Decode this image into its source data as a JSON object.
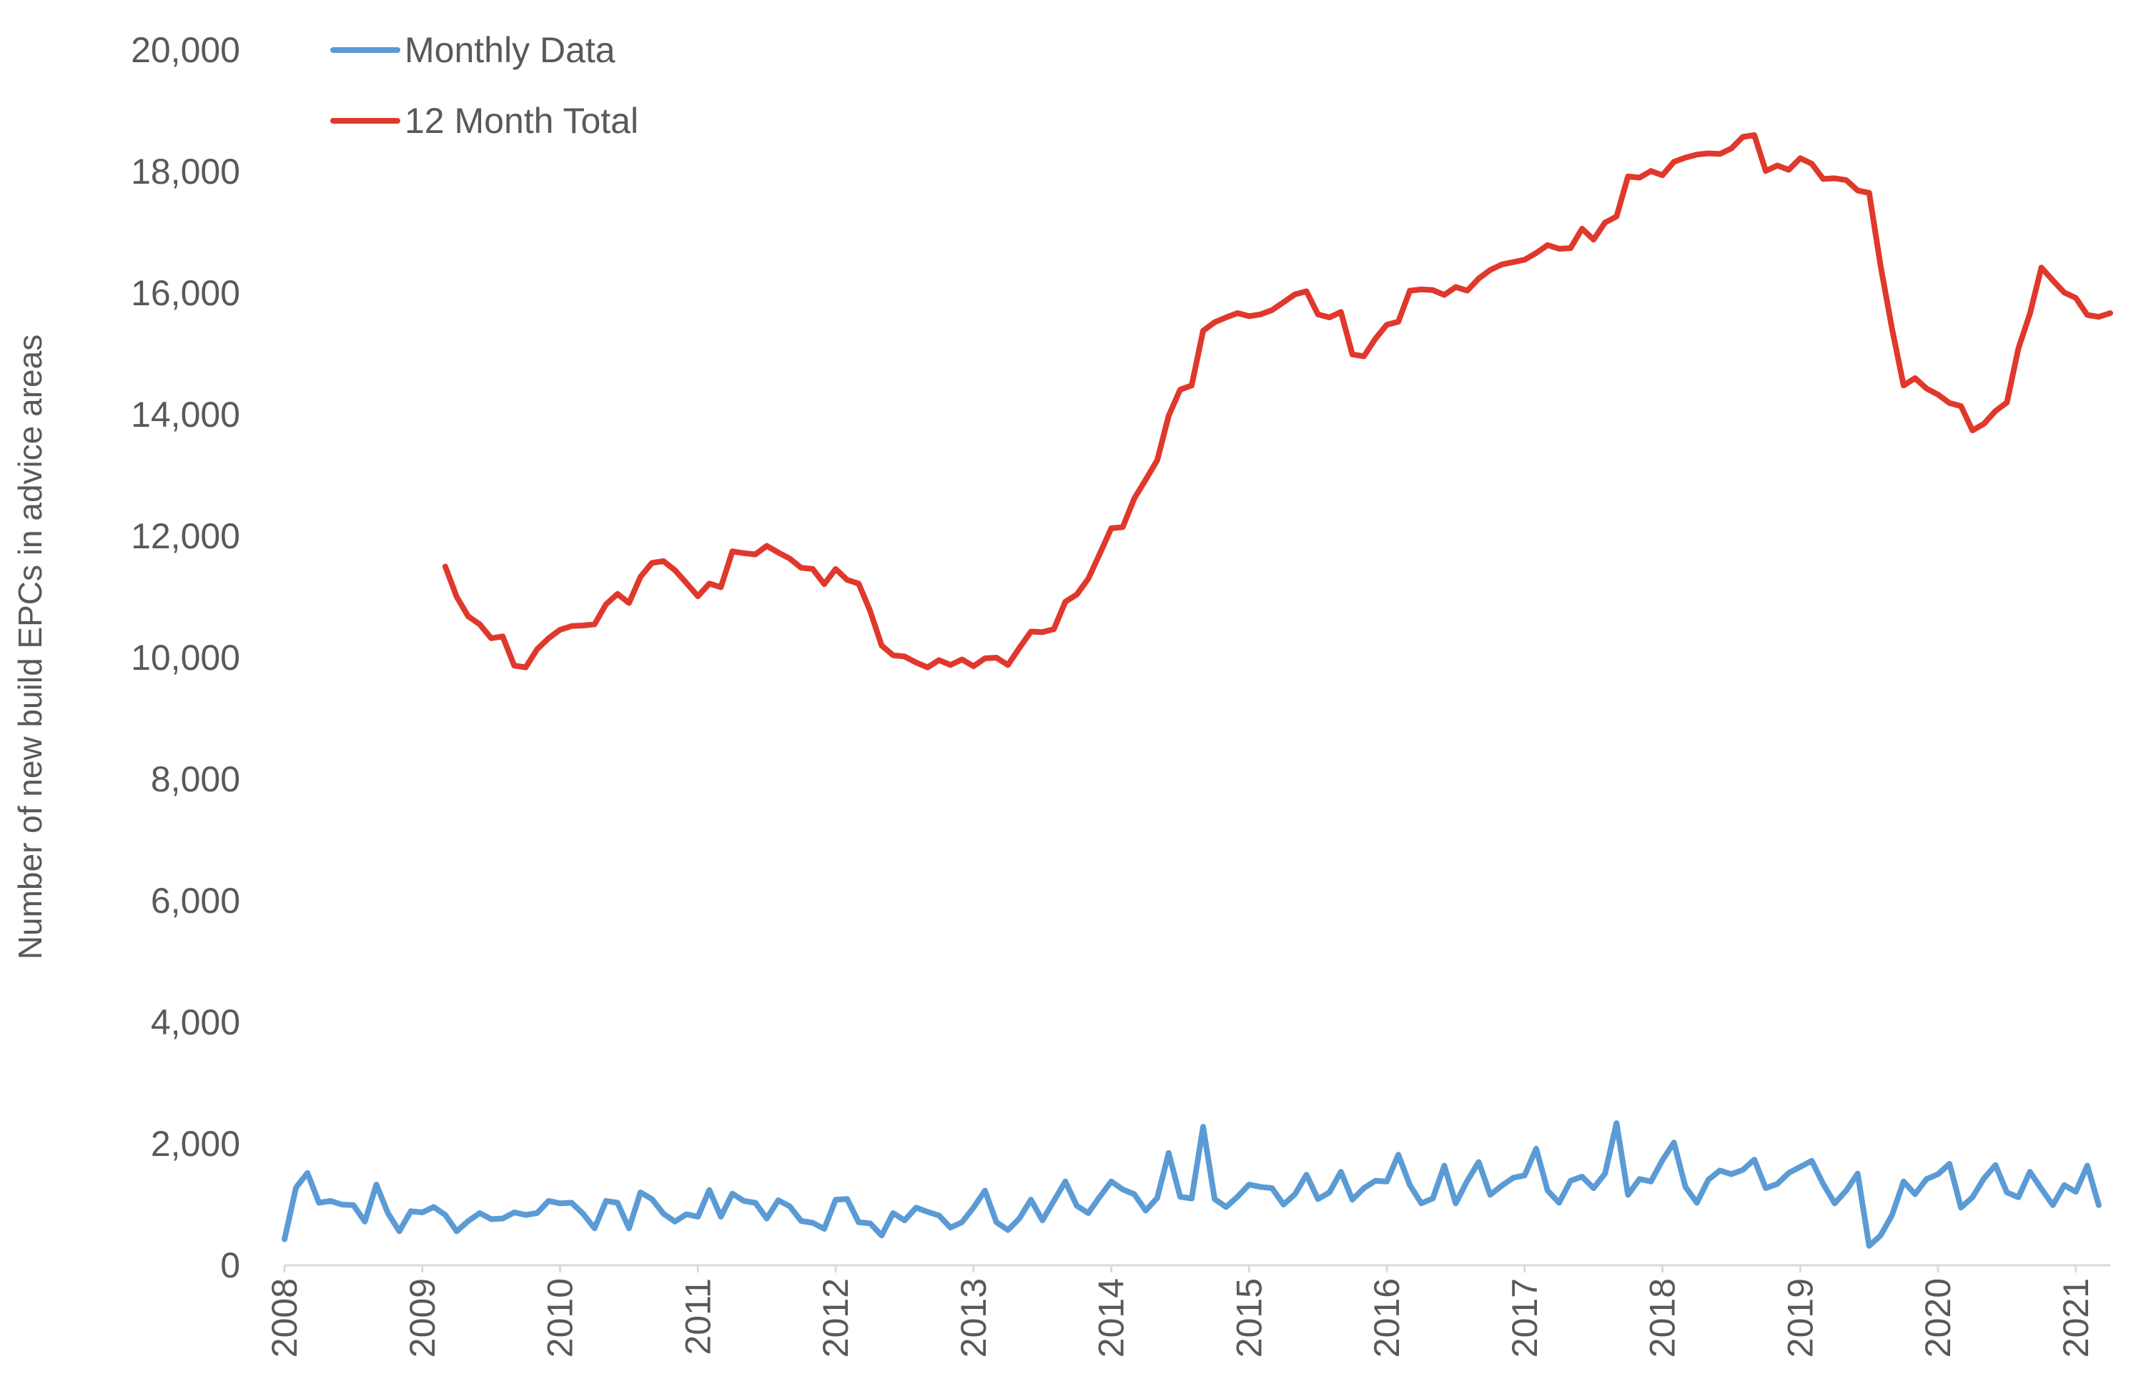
{
  "chart_data": {
    "type": "line",
    "title": "",
    "xlabel": "",
    "ylabel": "Number of new build EPCs in advice areas",
    "ylim": [
      0,
      20000
    ],
    "yticks": [
      0,
      2000,
      4000,
      6000,
      8000,
      10000,
      12000,
      14000,
      16000,
      18000,
      20000
    ],
    "ytick_labels": [
      "0",
      "2,000",
      "4,000",
      "6,000",
      "8,000",
      "10,000",
      "12,000",
      "14,000",
      "16,000",
      "18,000",
      "20,000"
    ],
    "xlim": [
      2008,
      2021.25
    ],
    "xticks": [
      2008,
      2009,
      2010,
      2011,
      2012,
      2013,
      2014,
      2015,
      2016,
      2017,
      2018,
      2019,
      2020,
      2021
    ],
    "xtick_labels": [
      "2008",
      "2009",
      "2010",
      "2011",
      "2012",
      "2013",
      "2014",
      "2015",
      "2016",
      "2017",
      "2018",
      "2019",
      "2020",
      "2021"
    ],
    "grid": false,
    "legend": "top-left",
    "series": [
      {
        "name": "Monthly Data",
        "color": "#5B9BD5",
        "start": "2008-01",
        "step": "month",
        "values": [
          430,
          1280,
          1520,
          1030,
          1060,
          1000,
          990,
          720,
          1330,
          860,
          560,
          890,
          870,
          960,
          830,
          560,
          730,
          860,
          760,
          770,
          870,
          830,
          860,
          1060,
          1020,
          1030,
          850,
          610,
          1060,
          1030,
          610,
          1200,
          1090,
          850,
          720,
          840,
          800,
          1240,
          800,
          1180,
          1060,
          1030,
          770,
          1070,
          970,
          730,
          700,
          600,
          1080,
          1090,
          710,
          690,
          490,
          860,
          740,
          950,
          880,
          820,
          620,
          710,
          950,
          1230,
          710,
          580,
          770,
          1080,
          740,
          1060,
          1380,
          980,
          860,
          1130,
          1380,
          1250,
          1170,
          900,
          1110,
          1850,
          1130,
          1100,
          2280,
          1090,
          960,
          1130,
          1330,
          1290,
          1270,
          1000,
          1170,
          1490,
          1090,
          1200,
          1540,
          1080,
          1270,
          1390,
          1380,
          1820,
          1320,
          1020,
          1100,
          1640,
          1020,
          1390,
          1700,
          1160,
          1310,
          1440,
          1480,
          1920,
          1230,
          1030,
          1390,
          1460,
          1270,
          1510,
          2340,
          1160,
          1420,
          1380,
          1730,
          2020,
          1290,
          1030,
          1410,
          1560,
          1500,
          1570,
          1740,
          1270,
          1340,
          1520,
          1620,
          1720,
          1340,
          1020,
          1230,
          1510,
          320,
          490,
          830,
          1380,
          1170,
          1420,
          1500,
          1670,
          950,
          1120,
          1430,
          1650,
          1200,
          1120,
          1540,
          1260,
          990,
          1320,
          1210,
          1640,
          990
        ]
      },
      {
        "name": "12 Month Total",
        "color": "#E0382C",
        "start": "2009-03",
        "step": "month",
        "values": [
          11500,
          11000,
          10680,
          10550,
          10320,
          10350,
          9870,
          9840,
          10140,
          10320,
          10460,
          10520,
          10530,
          10550,
          10880,
          11050,
          10900,
          11330,
          11560,
          11590,
          11440,
          11230,
          11010,
          11220,
          11160,
          11750,
          11720,
          11700,
          11840,
          11730,
          11630,
          11480,
          11460,
          11210,
          11460,
          11280,
          11220,
          10770,
          10200,
          10040,
          10020,
          9920,
          9840,
          9960,
          9880,
          9970,
          9860,
          9990,
          10000,
          9880,
          10160,
          10430,
          10420,
          10470,
          10920,
          11040,
          11300,
          11710,
          12130,
          12150,
          12620,
          12930,
          13250,
          13980,
          14410,
          14480,
          15380,
          15520,
          15600,
          15670,
          15620,
          15650,
          15720,
          15850,
          15980,
          16030,
          15650,
          15600,
          15690,
          14990,
          14960,
          15250,
          15480,
          15530,
          16040,
          16060,
          16050,
          15970,
          16100,
          16040,
          16240,
          16380,
          16470,
          16510,
          16550,
          16660,
          16790,
          16730,
          16740,
          17060,
          16880,
          17160,
          17260,
          17920,
          17900,
          18010,
          17940,
          18160,
          18230,
          18280,
          18300,
          18290,
          18380,
          18570,
          18600,
          18010,
          18100,
          18030,
          18220,
          18130,
          17880,
          17890,
          17860,
          17690,
          17650,
          16450,
          15410,
          14480,
          14600,
          14430,
          14330,
          14190,
          14140,
          13740,
          13850,
          14060,
          14200,
          15090,
          15660,
          16420,
          16210,
          16010,
          15920,
          15640,
          15610,
          15670
        ]
      }
    ]
  }
}
